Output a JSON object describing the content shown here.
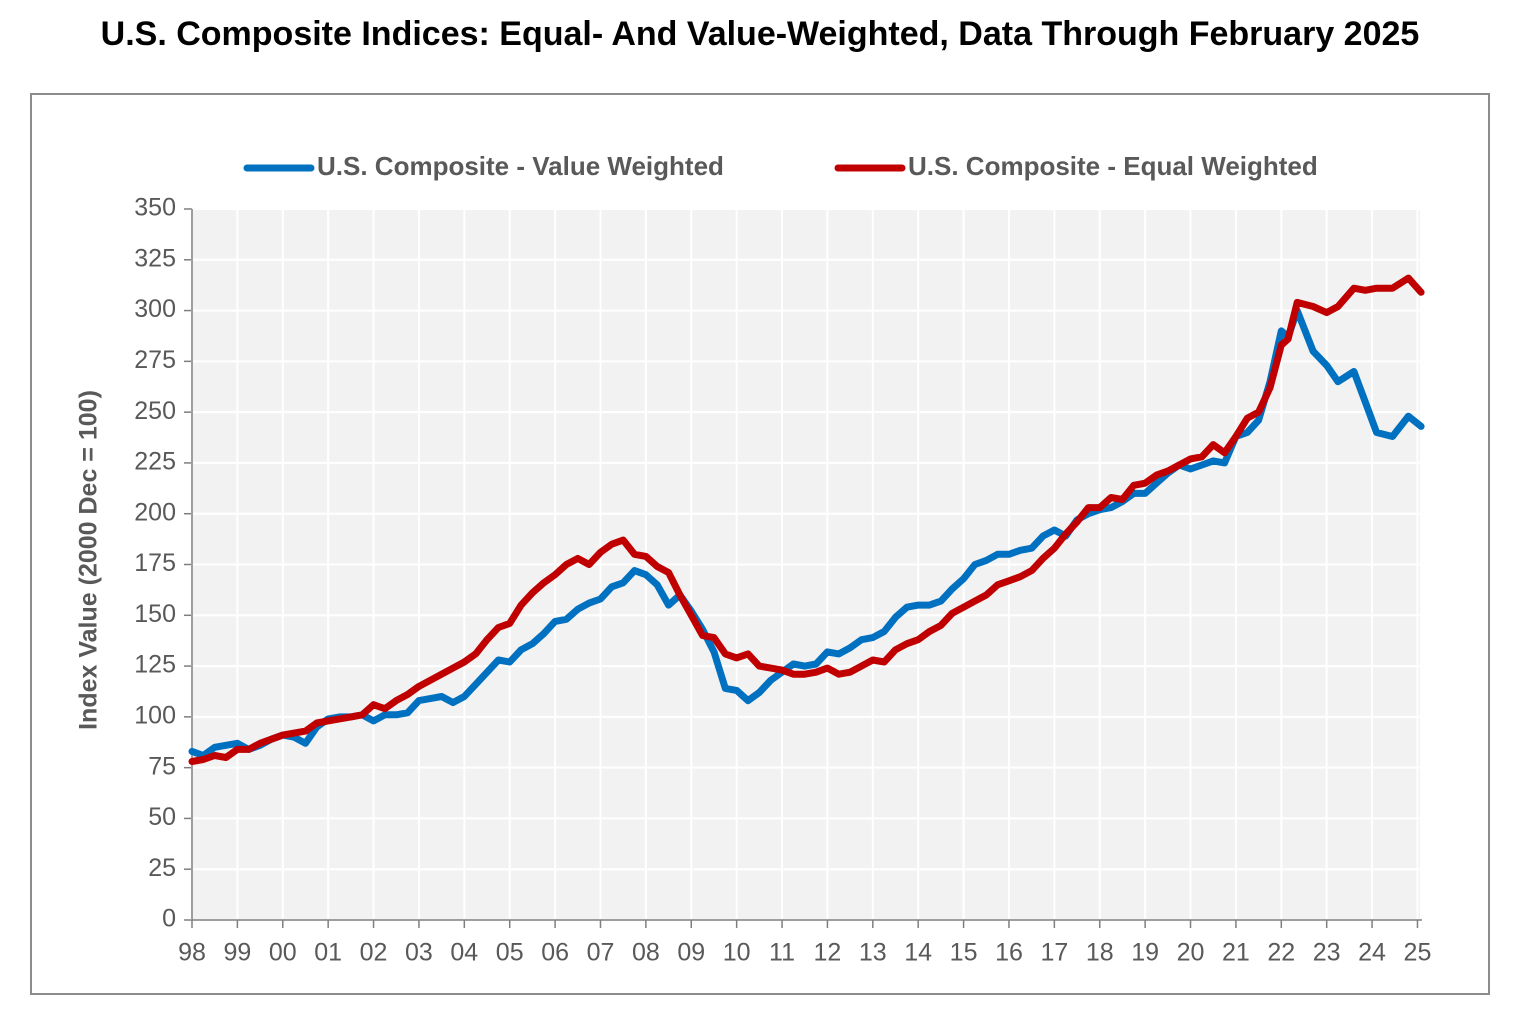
{
  "chart_data": {
    "type": "line",
    "title": "U.S. Composite Indices: Equal- And Value-Weighted, Data Through February 2025",
    "y_label": "Index Value (2000 Dec = 100)",
    "x": [
      1998,
      1998.25,
      1998.5,
      1998.75,
      1999,
      1999.25,
      1999.5,
      1999.75,
      2000,
      2000.25,
      2000.5,
      2000.75,
      2001,
      2001.25,
      2001.5,
      2001.75,
      2002,
      2002.25,
      2002.5,
      2002.75,
      2003,
      2003.25,
      2003.5,
      2003.75,
      2004,
      2004.25,
      2004.5,
      2004.75,
      2005,
      2005.25,
      2005.5,
      2005.75,
      2006,
      2006.25,
      2006.5,
      2006.75,
      2007,
      2007.25,
      2007.5,
      2007.75,
      2008,
      2008.25,
      2008.5,
      2008.75,
      2009,
      2009.25,
      2009.5,
      2009.75,
      2010,
      2010.25,
      2010.5,
      2010.75,
      2011,
      2011.25,
      2011.5,
      2011.75,
      2012,
      2012.25,
      2012.5,
      2012.75,
      2013,
      2013.25,
      2013.5,
      2013.75,
      2014,
      2014.25,
      2014.5,
      2014.75,
      2015,
      2015.25,
      2015.5,
      2015.75,
      2016,
      2016.25,
      2016.5,
      2016.75,
      2017,
      2017.25,
      2017.5,
      2017.75,
      2018,
      2018.25,
      2018.5,
      2018.75,
      2019,
      2019.25,
      2019.5,
      2019.75,
      2020,
      2020.25,
      2020.5,
      2020.75,
      2021,
      2021.25,
      2021.5,
      2021.75,
      2022,
      2022.15,
      2022.35,
      2022.7,
      2023,
      2023.25,
      2023.6,
      2023.85,
      2024.1,
      2024.45,
      2024.8,
      2025.08
    ],
    "series": [
      {
        "name": "U.S. Composite - Value Weighted",
        "color": "#0070c0",
        "values": [
          83,
          81,
          85,
          86,
          87,
          84,
          86,
          89,
          91,
          90,
          87,
          95,
          99,
          100,
          100,
          101,
          98,
          101,
          101,
          102,
          108,
          109,
          110,
          107,
          110,
          116,
          122,
          128,
          127,
          133,
          136,
          141,
          147,
          148,
          153,
          156,
          158,
          164,
          166,
          172,
          170,
          165,
          155,
          160,
          152,
          143,
          132,
          114,
          113,
          108,
          112,
          118,
          122,
          126,
          125,
          126,
          132,
          131,
          134,
          138,
          139,
          142,
          149,
          154,
          155,
          155,
          157,
          163,
          168,
          175,
          177,
          180,
          180,
          182,
          183,
          189,
          192,
          189,
          197,
          200,
          202,
          203,
          206,
          210,
          210,
          215,
          220,
          224,
          222,
          224,
          226,
          225,
          238,
          240,
          246,
          265,
          290,
          287,
          300,
          280,
          273,
          265,
          270,
          255,
          240,
          238,
          248,
          243
        ]
      },
      {
        "name": "U.S. Composite - Equal Weighted",
        "color": "#c00000",
        "values": [
          78,
          79,
          81,
          80,
          84,
          84,
          87,
          89,
          91,
          92,
          93,
          97,
          98,
          99,
          100,
          101,
          106,
          104,
          108,
          111,
          115,
          118,
          121,
          124,
          127,
          131,
          138,
          144,
          146,
          155,
          161,
          166,
          170,
          175,
          178,
          175,
          181,
          185,
          187,
          180,
          179,
          174,
          171,
          160,
          150,
          140,
          139,
          131,
          129,
          131,
          125,
          124,
          123,
          121,
          121,
          122,
          124,
          121,
          122,
          125,
          128,
          127,
          133,
          136,
          138,
          142,
          145,
          151,
          154,
          157,
          160,
          165,
          167,
          169,
          172,
          178,
          183,
          190,
          196,
          203,
          203,
          208,
          207,
          214,
          215,
          219,
          221,
          224,
          227,
          228,
          234,
          230,
          238,
          247,
          250,
          262,
          283,
          286,
          304,
          302,
          299,
          302,
          311,
          310,
          311,
          311,
          316,
          309
        ]
      }
    ],
    "xlim": [
      1998,
      2025.1
    ],
    "xticks": [
      {
        "value": 1998,
        "label": "98"
      },
      {
        "value": 1999,
        "label": "99"
      },
      {
        "value": 2000,
        "label": "00"
      },
      {
        "value": 2001,
        "label": "01"
      },
      {
        "value": 2002,
        "label": "02"
      },
      {
        "value": 2003,
        "label": "03"
      },
      {
        "value": 2004,
        "label": "04"
      },
      {
        "value": 2005,
        "label": "05"
      },
      {
        "value": 2006,
        "label": "06"
      },
      {
        "value": 2007,
        "label": "07"
      },
      {
        "value": 2008,
        "label": "08"
      },
      {
        "value": 2009,
        "label": "09"
      },
      {
        "value": 2010,
        "label": "10"
      },
      {
        "value": 2011,
        "label": "11"
      },
      {
        "value": 2012,
        "label": "12"
      },
      {
        "value": 2013,
        "label": "13"
      },
      {
        "value": 2014,
        "label": "14"
      },
      {
        "value": 2015,
        "label": "15"
      },
      {
        "value": 2016,
        "label": "16"
      },
      {
        "value": 2017,
        "label": "17"
      },
      {
        "value": 2018,
        "label": "18"
      },
      {
        "value": 2019,
        "label": "19"
      },
      {
        "value": 2020,
        "label": "20"
      },
      {
        "value": 2021,
        "label": "21"
      },
      {
        "value": 2022,
        "label": "22"
      },
      {
        "value": 2023,
        "label": "23"
      },
      {
        "value": 2024,
        "label": "24"
      },
      {
        "value": 2025,
        "label": "25"
      }
    ],
    "ylim": [
      0,
      350
    ],
    "yticks": [
      0,
      25,
      50,
      75,
      100,
      125,
      150,
      175,
      200,
      225,
      250,
      275,
      300,
      325,
      350
    ],
    "grid": true,
    "legend": "top"
  }
}
